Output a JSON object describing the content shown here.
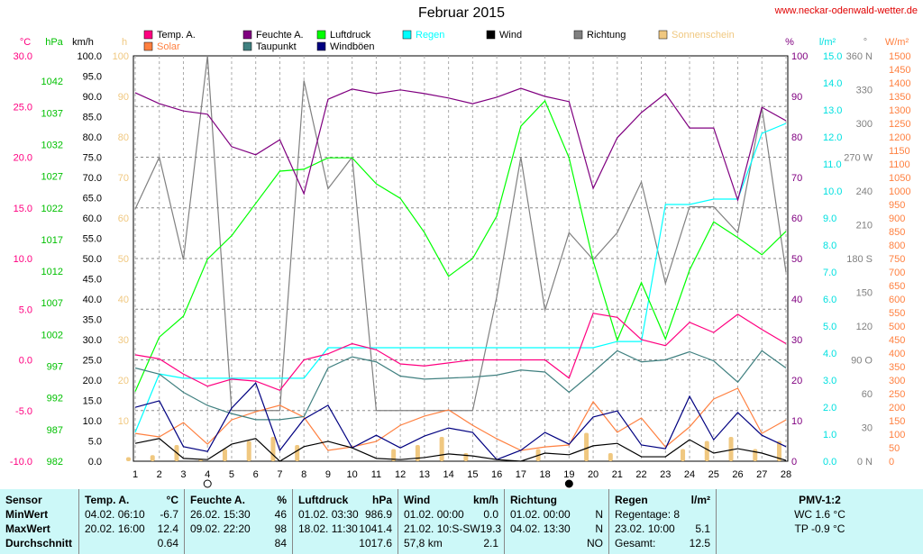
{
  "title": "Februar 2015",
  "url": "www.neckar-odenwald-wetter.de",
  "chart_data": {
    "type": "line",
    "title": "Februar 2015",
    "x": [
      1,
      2,
      3,
      4,
      5,
      6,
      7,
      8,
      9,
      10,
      11,
      12,
      13,
      14,
      15,
      16,
      17,
      18,
      19,
      20,
      21,
      22,
      23,
      24,
      25,
      26,
      27,
      28
    ],
    "axes": {
      "temp": {
        "unit": "°C",
        "min": -10,
        "max": 30,
        "ticks": [
          "30.0",
          "25.0",
          "20.0",
          "15.0",
          "10.0",
          "5.0",
          "0.0",
          "-5.0",
          "-10.0"
        ],
        "color": "#ff0080"
      },
      "hpa": {
        "unit": "hPa",
        "min": 982,
        "max": 1046,
        "ticks": [
          "1042",
          "1037",
          "1032",
          "1027",
          "1022",
          "1017",
          "1012",
          "1007",
          "1002",
          "997",
          "992",
          "987",
          "982"
        ],
        "color": "#00c000"
      },
      "kmh": {
        "unit": "km/h",
        "min": 0,
        "max": 100,
        "color": "#000000"
      },
      "h": {
        "unit": "h",
        "min": 0,
        "max": 100,
        "ticks": [
          "100",
          "90",
          "80",
          "70",
          "60",
          "50",
          "40",
          "30",
          "20",
          "10"
        ],
        "color": "#f0c880"
      },
      "pct": {
        "unit": "%",
        "min": 0,
        "max": 100,
        "color": "#800080"
      },
      "rain": {
        "unit": "l/m²",
        "min": 0,
        "max": 15,
        "color": "#00e0e0"
      },
      "deg": {
        "unit": "°",
        "min": 0,
        "max": 360,
        "ticks": [
          "360 N",
          "330",
          "300",
          "270 W",
          "240",
          "210",
          "180 S",
          "150",
          "120",
          "90 O",
          "60",
          "30",
          "0 N"
        ],
        "color": "#808080"
      },
      "wm2": {
        "unit": "W/m²",
        "min": 0,
        "max": 1500,
        "color": "#ff8040"
      }
    },
    "series": [
      {
        "name": "Sonnenschein",
        "axis": "h",
        "type": "bar",
        "color": "#f0c880",
        "values": [
          1,
          1.5,
          4,
          0.5,
          3,
          5,
          6,
          4,
          0,
          0,
          0,
          3,
          4,
          6,
          2,
          0,
          0,
          3,
          0,
          7,
          2,
          0,
          0,
          3,
          5,
          6,
          3,
          5
        ]
      },
      {
        "name": "Richtung",
        "axis": "deg",
        "color": "#808080",
        "values": [
          224,
          270,
          179,
          360,
          45,
          45,
          45,
          338,
          242,
          270,
          45,
          45,
          45,
          45,
          45,
          146,
          270,
          134,
          203,
          179,
          203,
          248,
          158,
          226,
          226,
          203,
          314,
          168
        ]
      },
      {
        "name": "Regen",
        "axis": "rain",
        "color": "#00ffff",
        "values": [
          1.07,
          3.23,
          3.07,
          3.07,
          3.07,
          3.07,
          3.07,
          3.07,
          4.2,
          4.2,
          4.2,
          4.2,
          4.2,
          4.2,
          4.2,
          4.2,
          4.2,
          4.2,
          4.2,
          4.2,
          4.43,
          4.43,
          9.5,
          9.5,
          9.7,
          9.7,
          12.13,
          12.5
        ]
      },
      {
        "name": "Solar",
        "axis": "wm2",
        "color": "#ff8040",
        "values": [
          103,
          90,
          143,
          63,
          153,
          183,
          207,
          163,
          40,
          53,
          73,
          133,
          167,
          190,
          133,
          83,
          40,
          53,
          60,
          220,
          107,
          160,
          53,
          127,
          230,
          270,
          103,
          153
        ]
      },
      {
        "name": "Luftdruck",
        "axis": "hpa",
        "color": "#00ff00",
        "values": [
          993.0,
          1001.6,
          1004.9,
          1013.9,
          1017.6,
          1022.7,
          1027.8,
          1028.1,
          1029.9,
          1029.9,
          1025.8,
          1023.5,
          1018.1,
          1011.2,
          1014.0,
          1020.7,
          1034.9,
          1038.9,
          1029.9,
          1013.6,
          1001.1,
          1010.2,
          1001.3,
          1012.2,
          1019.8,
          1017.3,
          1014.6,
          1018.3
        ]
      },
      {
        "name": "Taupunkt",
        "axis": "temp",
        "color": "#408080",
        "values": [
          -0.8,
          -1.4,
          -3.2,
          -4.5,
          -5.3,
          -5.9,
          -5.9,
          -5.6,
          -0.8,
          0.3,
          -0.2,
          -1.6,
          -1.9,
          -1.8,
          -1.7,
          -1.5,
          -1.0,
          -1.2,
          -3.2,
          -1.2,
          0.9,
          -0.2,
          0.0,
          0.8,
          -0.1,
          -2.2,
          0.9,
          -0.8
        ]
      },
      {
        "name": "Temp. A.",
        "axis": "temp",
        "color": "#ff0080",
        "values": [
          0.5,
          0.1,
          -1.4,
          -2.6,
          -1.9,
          -2.1,
          -3.0,
          0.0,
          0.6,
          1.6,
          1.0,
          -0.4,
          -0.6,
          -0.3,
          0.0,
          0.0,
          0.0,
          0.0,
          -1.8,
          4.6,
          4.2,
          2.0,
          1.4,
          3.7,
          2.7,
          4.5,
          3.0,
          1.6
        ]
      },
      {
        "name": "Feuchte A.",
        "axis": "pct",
        "color": "#800080",
        "values": [
          90.9,
          88.2,
          86.4,
          85.6,
          77.6,
          75.6,
          79.3,
          66.0,
          89.3,
          91.8,
          90.7,
          91.6,
          90.7,
          89.6,
          88.2,
          89.8,
          92.0,
          90.0,
          88.7,
          67.3,
          79.8,
          86.0,
          90.7,
          82.2,
          82.2,
          64.4,
          87.3,
          84.0
        ]
      },
      {
        "name": "Windböen",
        "axis": "kmh",
        "color": "#000080",
        "values": [
          13.3,
          14.9,
          3.6,
          2.4,
          13.1,
          19.3,
          2.7,
          10.4,
          13.8,
          3.3,
          6.4,
          3.3,
          6.2,
          8.2,
          7.1,
          0.4,
          2.7,
          7.1,
          4.2,
          10.9,
          12.4,
          4.0,
          3.1,
          16.0,
          5.3,
          12.0,
          6.4,
          3.6
        ]
      },
      {
        "name": "Wind",
        "axis": "kmh",
        "color": "#000000",
        "values": [
          4.4,
          5.6,
          0.7,
          0.4,
          4.2,
          5.6,
          0,
          3.6,
          4.9,
          3.3,
          0.7,
          0.4,
          0.9,
          1.8,
          1.3,
          0.4,
          0,
          2.0,
          1.6,
          3.8,
          4.4,
          1.1,
          1.1,
          5.3,
          2.0,
          3.1,
          2.0,
          0.2
        ]
      }
    ],
    "legend": [
      {
        "label": "Temp. A.",
        "color": "#ff0080"
      },
      {
        "label": "Feuchte A.",
        "color": "#800080"
      },
      {
        "label": "Luftdruck",
        "color": "#00ff00"
      },
      {
        "label": "Regen",
        "color": "#00ffff"
      },
      {
        "label": "Wind",
        "color": "#000000"
      },
      {
        "label": "Richtung",
        "color": "#808080"
      },
      {
        "label": "Sonnenschein",
        "color": "#f0c880"
      },
      {
        "label": "Solar",
        "color": "#ff8040"
      },
      {
        "label": "Taupunkt",
        "color": "#408080"
      },
      {
        "label": "Windböen",
        "color": "#000080"
      }
    ],
    "moon": [
      {
        "day": 4,
        "phase": "full"
      },
      {
        "day": 19,
        "phase": "new"
      }
    ]
  },
  "table": {
    "sensor": {
      "h": "Sensor",
      "r1": "MinWert",
      "r2": "MaxWert",
      "r3": "Durchschnitt"
    },
    "temp": {
      "h": "Temp. A.",
      "u": "°C",
      "min_t": "04.02.  06:10",
      "min": "-6.7",
      "max_t": "20.02.  16:00",
      "max": "12.4",
      "avg": "0.64"
    },
    "feuchte": {
      "h": "Feuchte A.",
      "u": "%",
      "min_t": "26.02.  15:30",
      "min": "46",
      "max_t": "09.02.  22:20",
      "max": "98",
      "avg": "84"
    },
    "druck": {
      "h": "Luftdruck",
      "u": "hPa",
      "min_t": "01.02.  03:30",
      "min": "986.9",
      "max_t": "18.02.  11:30",
      "max": "1041.4",
      "avg": "1017.6"
    },
    "wind": {
      "h": "Wind",
      "u": "km/h",
      "min_t": "01.02.  00:00",
      "min": "0.0",
      "max_t": "21.02.  10:S-SW",
      "max": "19.3",
      "avg_t": "57,8 km",
      "avg": "2.1"
    },
    "richtung": {
      "h": "Richtung",
      "min_t": "01.02.  00:00",
      "min": "N",
      "max_t": "04.02.  13:30",
      "max": "N",
      "avg": "NO"
    },
    "regen": {
      "h": "Regen",
      "u": "l/m²",
      "r1": "Regentage: 8",
      "max_t": "23.02.  10:00",
      "max": "5.1",
      "avg_t": "Gesamt:",
      "avg": "12.5"
    },
    "pmv": {
      "h": "PMV-1:2",
      "wc": "WC 1.6 °C",
      "tp": "TP -0.9 °C"
    }
  }
}
